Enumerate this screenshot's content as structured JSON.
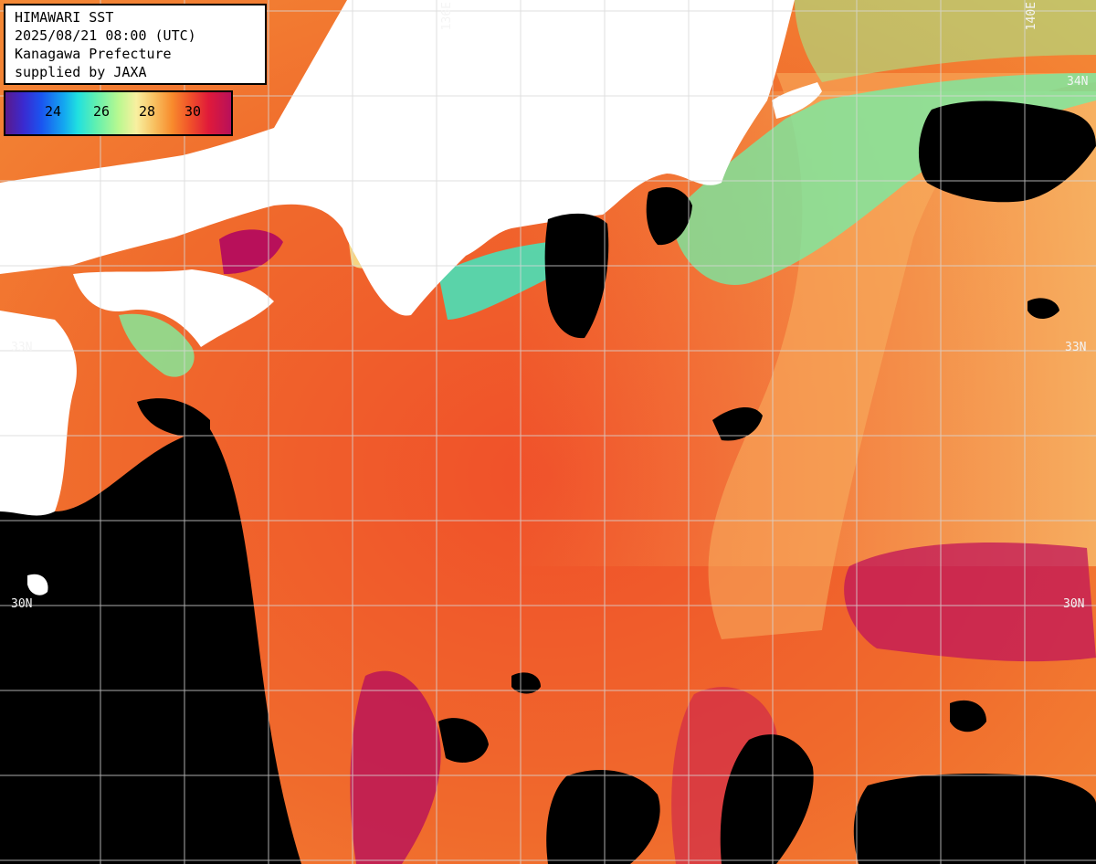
{
  "info": {
    "line1": "HIMAWARI SST",
    "line2": "2025/08/21 08:00 (UTC)",
    "line3": "Kanagawa Prefecture",
    "line4": "supplied by JAXA"
  },
  "colorbar": {
    "ticks": [
      "24",
      "26",
      "28",
      "30"
    ],
    "colors": {
      "cold": "#3a2ad0",
      "cool": "#20e0e0",
      "mild": "#f8f0a0",
      "warm": "#f0502a",
      "hot": "#b8105a"
    }
  },
  "grid_labels": {
    "lon_136": "136E",
    "lon_140": "140E",
    "lat_33_left": "33N",
    "lat_33_right": "33N",
    "lat_30_left": "30N",
    "lat_30_right": "30N",
    "lat_34_right": "34N"
  },
  "palette": {
    "land": "#ffffff",
    "cloud": "#000000",
    "grid": "#d8d8d8"
  }
}
